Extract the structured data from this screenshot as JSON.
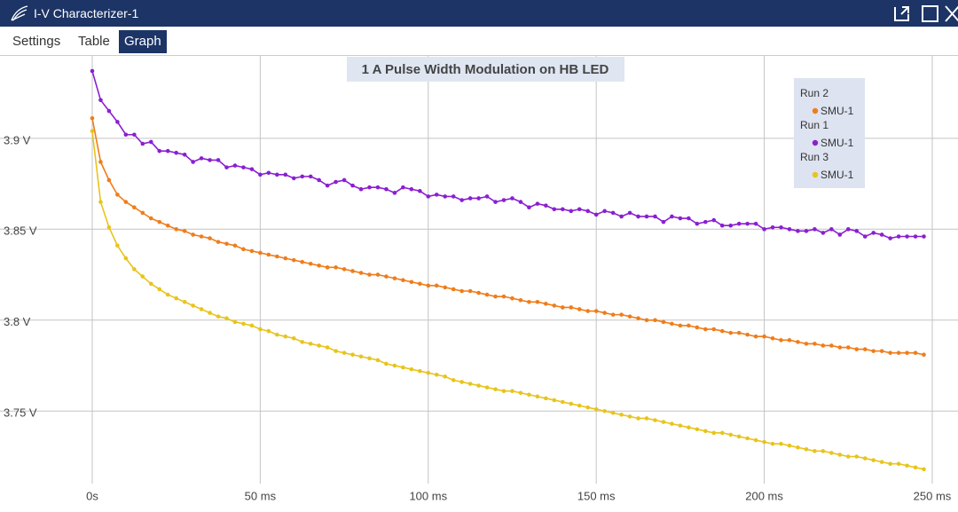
{
  "window": {
    "title": "I-V Characterizer-1",
    "tabs": [
      "Settings",
      "Table",
      "Graph"
    ],
    "active_tab": 2
  },
  "chart_data": {
    "type": "line",
    "title": "1 A Pulse Width Modulation on HB LED",
    "x": [
      0,
      2.5,
      5,
      7.5,
      10,
      12.5,
      15,
      17.5,
      20,
      22.5,
      25,
      27.5,
      30,
      32.5,
      35,
      37.5,
      40,
      42.5,
      45,
      47.5,
      50,
      52.5,
      55,
      57.5,
      60,
      62.5,
      65,
      67.5,
      70,
      72.5,
      75,
      77.5,
      80,
      82.5,
      85,
      87.5,
      90,
      92.5,
      95,
      97.5,
      100,
      102.5,
      105,
      107.5,
      110,
      112.5,
      115,
      117.5,
      120,
      122.5,
      125,
      127.5,
      130,
      132.5,
      135,
      137.5,
      140,
      142.5,
      145,
      147.5,
      150,
      152.5,
      155,
      157.5,
      160,
      162.5,
      165,
      167.5,
      170,
      172.5,
      175,
      177.5,
      180,
      182.5,
      185,
      187.5,
      190,
      192.5,
      195,
      197.5,
      200,
      202.5,
      205,
      207.5,
      210,
      212.5,
      215,
      217.5,
      220,
      222.5,
      225,
      227.5,
      230,
      232.5,
      235,
      237.5,
      240,
      242.5,
      245,
      247.5
    ],
    "series": [
      {
        "group": "Run 2",
        "name": "SMU-1",
        "color": "#ef7d1a",
        "values": [
          3.911,
          3.887,
          3.877,
          3.869,
          3.865,
          3.862,
          3.859,
          3.856,
          3.854,
          3.852,
          3.85,
          3.849,
          3.847,
          3.846,
          3.845,
          3.843,
          3.842,
          3.841,
          3.839,
          3.838,
          3.837,
          3.836,
          3.835,
          3.834,
          3.833,
          3.832,
          3.831,
          3.83,
          3.829,
          3.829,
          3.828,
          3.827,
          3.826,
          3.825,
          3.825,
          3.824,
          3.823,
          3.822,
          3.821,
          3.82,
          3.819,
          3.819,
          3.818,
          3.817,
          3.816,
          3.816,
          3.815,
          3.814,
          3.813,
          3.813,
          3.812,
          3.811,
          3.81,
          3.81,
          3.809,
          3.808,
          3.807,
          3.807,
          3.806,
          3.805,
          3.805,
          3.804,
          3.803,
          3.803,
          3.802,
          3.801,
          3.8,
          3.8,
          3.799,
          3.798,
          3.797,
          3.797,
          3.796,
          3.795,
          3.795,
          3.794,
          3.793,
          3.793,
          3.792,
          3.791,
          3.791,
          3.79,
          3.789,
          3.789,
          3.788,
          3.787,
          3.787,
          3.786,
          3.786,
          3.785,
          3.785,
          3.784,
          3.784,
          3.783,
          3.783,
          3.782,
          3.782,
          3.782,
          3.782,
          3.781
        ]
      },
      {
        "group": "Run 1",
        "name": "SMU-1",
        "color": "#8a1fd1",
        "values": [
          3.937,
          3.921,
          3.915,
          3.909,
          3.902,
          3.902,
          3.897,
          3.898,
          3.893,
          3.893,
          3.892,
          3.891,
          3.887,
          3.889,
          3.888,
          3.888,
          3.884,
          3.885,
          3.884,
          3.883,
          3.88,
          3.881,
          3.88,
          3.88,
          3.878,
          3.879,
          3.879,
          3.877,
          3.874,
          3.876,
          3.877,
          3.874,
          3.872,
          3.873,
          3.873,
          3.872,
          3.87,
          3.873,
          3.872,
          3.871,
          3.868,
          3.869,
          3.868,
          3.868,
          3.866,
          3.867,
          3.867,
          3.868,
          3.865,
          3.866,
          3.867,
          3.865,
          3.862,
          3.864,
          3.863,
          3.861,
          3.861,
          3.86,
          3.861,
          3.86,
          3.858,
          3.86,
          3.859,
          3.857,
          3.859,
          3.857,
          3.857,
          3.857,
          3.854,
          3.857,
          3.856,
          3.856,
          3.853,
          3.854,
          3.855,
          3.852,
          3.852,
          3.853,
          3.853,
          3.853,
          3.85,
          3.851,
          3.851,
          3.85,
          3.849,
          3.849,
          3.85,
          3.848,
          3.85,
          3.847,
          3.85,
          3.849,
          3.846,
          3.848,
          3.847,
          3.845,
          3.846,
          3.846,
          3.846,
          3.846
        ]
      },
      {
        "group": "Run 3",
        "name": "SMU-1",
        "color": "#e8c41c",
        "values": [
          3.904,
          3.865,
          3.851,
          3.841,
          3.834,
          3.828,
          3.824,
          3.82,
          3.817,
          3.814,
          3.812,
          3.81,
          3.808,
          3.806,
          3.804,
          3.802,
          3.801,
          3.799,
          3.798,
          3.797,
          3.795,
          3.794,
          3.792,
          3.791,
          3.79,
          3.788,
          3.787,
          3.786,
          3.785,
          3.783,
          3.782,
          3.781,
          3.78,
          3.779,
          3.778,
          3.776,
          3.775,
          3.774,
          3.773,
          3.772,
          3.771,
          3.77,
          3.769,
          3.767,
          3.766,
          3.765,
          3.764,
          3.763,
          3.762,
          3.761,
          3.761,
          3.76,
          3.759,
          3.758,
          3.757,
          3.756,
          3.755,
          3.754,
          3.753,
          3.752,
          3.751,
          3.75,
          3.749,
          3.748,
          3.747,
          3.746,
          3.746,
          3.745,
          3.744,
          3.743,
          3.742,
          3.741,
          3.74,
          3.739,
          3.738,
          3.738,
          3.737,
          3.736,
          3.735,
          3.734,
          3.733,
          3.732,
          3.732,
          3.731,
          3.73,
          3.729,
          3.728,
          3.728,
          3.727,
          3.726,
          3.725,
          3.725,
          3.724,
          3.723,
          3.722,
          3.721,
          3.721,
          3.72,
          3.719,
          3.718
        ]
      }
    ],
    "xlim": [
      -27.45,
      257.66
    ],
    "ylim": [
      3.6945,
      3.9453
    ],
    "xticks": [
      {
        "value": 0,
        "label": "0s"
      },
      {
        "value": 50,
        "label": "50 ms"
      },
      {
        "value": 100,
        "label": "100 ms"
      },
      {
        "value": 150,
        "label": "150 ms"
      },
      {
        "value": 200,
        "label": "200 ms"
      },
      {
        "value": 250,
        "label": "250 ms"
      }
    ],
    "yticks": [
      {
        "value": 3.75,
        "label": "3.75 V"
      },
      {
        "value": 3.8,
        "label": "3.8 V"
      },
      {
        "value": 3.85,
        "label": "3.85 V"
      },
      {
        "value": 3.9,
        "label": "3.9 V"
      }
    ],
    "grid": true
  }
}
